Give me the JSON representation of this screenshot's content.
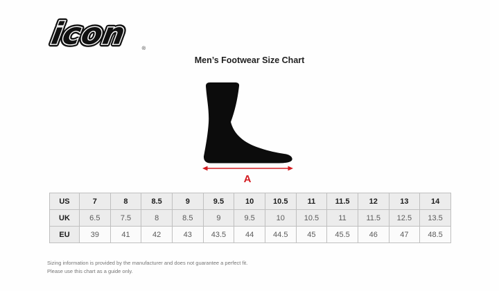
{
  "brand": {
    "logo_text": "icon",
    "registered_mark": "®"
  },
  "header": {
    "title": "Men’s Footwear Size Chart"
  },
  "figure": {
    "foot_icon": "foot-side-silhouette",
    "arrow_label": "A",
    "arrow_color": "#d31b20",
    "foot_color": "#0c0c0c"
  },
  "chart_data": {
    "type": "table",
    "title": "Men’s Footwear Size Chart",
    "row_headers": [
      "US",
      "UK",
      "EU"
    ],
    "rows": [
      [
        "7",
        "8",
        "8.5",
        "9",
        "9.5",
        "10",
        "10.5",
        "11",
        "11.5",
        "12",
        "13",
        "14"
      ],
      [
        "6.5",
        "7.5",
        "8",
        "8.5",
        "9",
        "9.5",
        "10",
        "10.5",
        "11",
        "11.5",
        "12.5",
        "13.5"
      ],
      [
        "39",
        "41",
        "42",
        "43",
        "43.5",
        "44",
        "44.5",
        "45",
        "45.5",
        "46",
        "47",
        "48.5"
      ]
    ],
    "measurement_annotation": "A"
  },
  "footnote": {
    "line1": "Sizing information is provided by the manufacturer and does not guarantee a perfect fit.",
    "line2": "Please use this chart as a guide only."
  }
}
